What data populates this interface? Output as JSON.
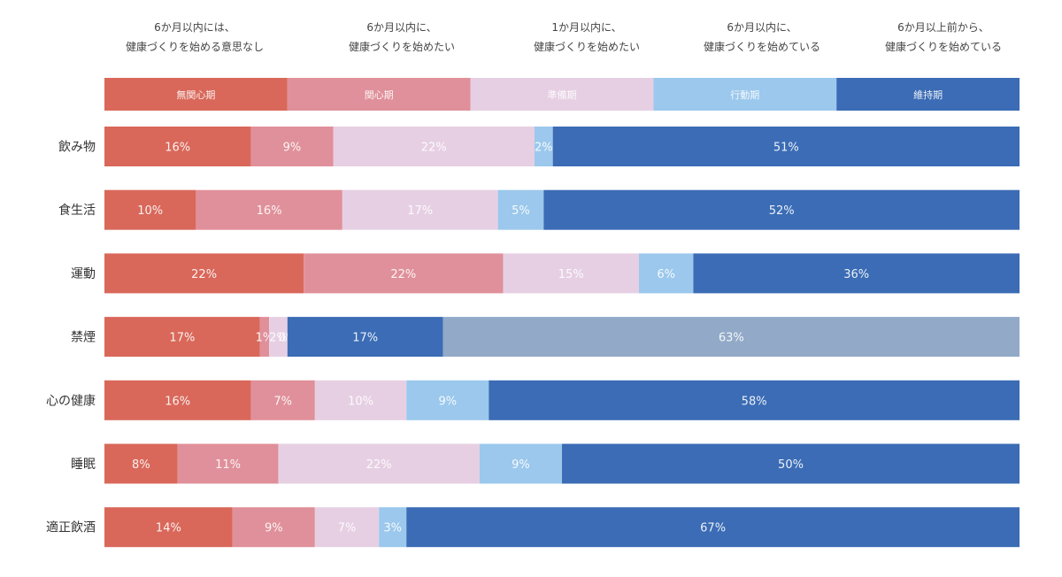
{
  "descriptions": [
    {
      "line1": "6か月以内には、",
      "line2": "健康づくりを始める意思なし"
    },
    {
      "line1": "6か月以内に、",
      "line2": "健康づくりを始めたい"
    },
    {
      "line1": "1か月以内に、",
      "line2": "健康づくりを始めたい"
    },
    {
      "line1": "6か月以内に、",
      "line2": "健康づくりを始めている"
    },
    {
      "line1": "6か月以上前から、",
      "line2": "健康づくりを始めている"
    }
  ],
  "colors": [
    "#d9685a",
    "#e0909a",
    "#e6cfe3",
    "#9bc8ec",
    "#3b6cb5",
    "#92aac8"
  ],
  "chart_data": {
    "type": "bar",
    "orientation": "horizontal",
    "stacked": true,
    "percent": true,
    "stages": [
      "無関心期",
      "関心期",
      "準備期",
      "行動期",
      "維持期"
    ],
    "categories": [
      "飲み物",
      "食生活",
      "運動",
      "禁煙",
      "心の健康",
      "睡眠",
      "適正飲酒"
    ],
    "rows": [
      {
        "values": [
          16,
          9,
          22,
          2,
          51
        ],
        "labels": [
          "16%",
          "9%",
          "22%",
          "2%",
          "51%"
        ],
        "color_index": [
          0,
          1,
          2,
          3,
          4
        ]
      },
      {
        "values": [
          10,
          16,
          17,
          5,
          52
        ],
        "labels": [
          "10%",
          "16%",
          "17%",
          "5%",
          "52%"
        ],
        "color_index": [
          0,
          1,
          2,
          3,
          4
        ]
      },
      {
        "values": [
          22,
          22,
          15,
          6,
          36
        ],
        "labels": [
          "22%",
          "22%",
          "15%",
          "6%",
          "36%"
        ],
        "color_index": [
          0,
          1,
          2,
          3,
          4
        ]
      },
      {
        "values": [
          17,
          1,
          2,
          0,
          17,
          63
        ],
        "labels": [
          "17%",
          "1%",
          "2%",
          "0%",
          "17%",
          "63%"
        ],
        "color_index": [
          0,
          1,
          2,
          3,
          4,
          5
        ]
      },
      {
        "values": [
          16,
          7,
          10,
          9,
          58
        ],
        "labels": [
          "16%",
          "7%",
          "10%",
          "9%",
          "58%"
        ],
        "color_index": [
          0,
          1,
          2,
          3,
          4
        ]
      },
      {
        "values": [
          8,
          11,
          22,
          9,
          50
        ],
        "labels": [
          "8%",
          "11%",
          "22%",
          "9%",
          "50%"
        ],
        "color_index": [
          0,
          1,
          2,
          3,
          4
        ]
      },
      {
        "values": [
          14,
          9,
          7,
          3,
          67
        ],
        "labels": [
          "14%",
          "9%",
          "7%",
          "3%",
          "67%"
        ],
        "color_index": [
          0,
          1,
          2,
          3,
          4
        ]
      }
    ]
  }
}
